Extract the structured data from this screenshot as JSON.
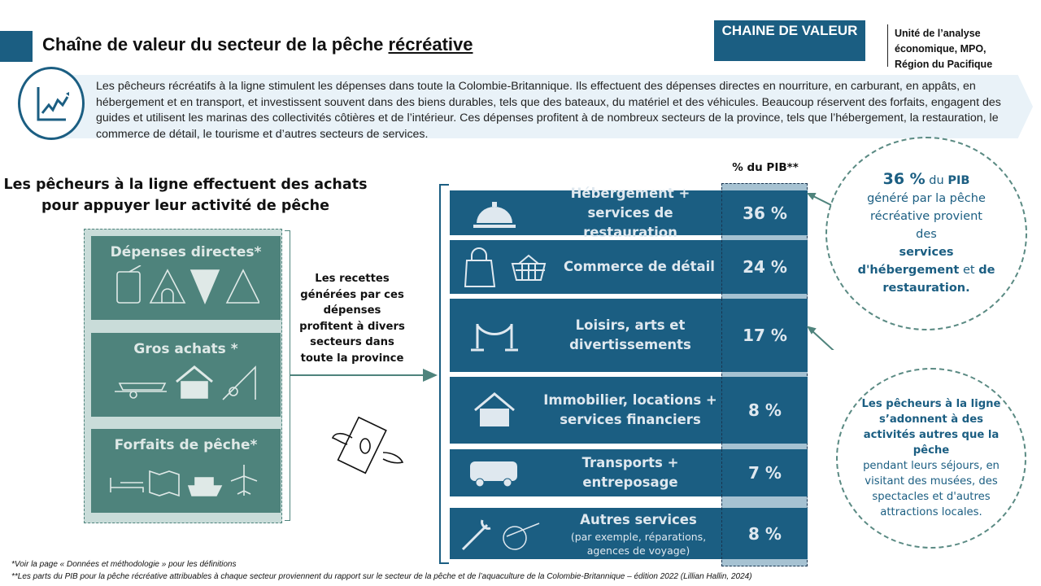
{
  "header": {
    "title_main": "Chaîne de valeur du secteur de la pêche ",
    "title_underlined": "récréative",
    "tag": "CHAINE DE VALEUR",
    "unit_lines": [
      "Unité de l’analyse",
      "économique, MPO,",
      "Région du Pacifique"
    ]
  },
  "intro": {
    "icon": "trend-chart-icon",
    "text": "Les pêcheurs récréatifs à la ligne stimulent les dépenses dans toute la Colombie-Britannique. Ils effectuent des dépenses directes en nourriture, en carburant, en appâts, en hébergement et en transport, et investissent souvent dans des biens durables, tels que des bateaux, du matériel et des véhicules. Beaucoup réservent des forfaits, engagent des guides et utilisent les marinas des collectivités côtières et de l’intérieur. Ces dépenses profitent à de nombreux secteurs de la province, tels que l’hébergement, la restauration, le commerce de détail, le tourisme et d’autres secteurs de services."
  },
  "left": {
    "heading": "Les pêcheurs à la ligne effectuent des achats pour appuyer leur activité de pêche",
    "categories": [
      {
        "label": "Dépenses directes*",
        "icons": [
          "fuel-can-icon",
          "tent-icon",
          "pizza-icon",
          "road-sign-icon"
        ]
      },
      {
        "label": "Gros achats *",
        "icons": [
          "boat-trailer-icon",
          "cabin-icon",
          "fishing-rod-icon"
        ]
      },
      {
        "label": "Forfaits de pêche*",
        "icons": [
          "bed-icon",
          "map-icon",
          "ship-icon",
          "airplane-icon"
        ]
      }
    ]
  },
  "middle": {
    "text": "Les recettes générées par ces dépenses profitent à divers secteurs dans toute la province",
    "icon": "flying-money-icon"
  },
  "sectors": {
    "column_header": "% du PIB**",
    "colors": {
      "row": "#1b5e82",
      "column": "#a6c2d2",
      "categories": "#4e837c"
    },
    "rows": [
      {
        "label": "Hébergement  + services de restauration",
        "pct": "36 %",
        "icon": "service-bell-icon"
      },
      {
        "label": "Commerce de détail",
        "pct": "24 %",
        "icon": "shopping-icon"
      },
      {
        "label": "Loisirs, arts et divertissements",
        "pct": "17 %",
        "icon": "stanchion-icon"
      },
      {
        "label": "Immobilier, locations + services financiers",
        "pct": "8 %",
        "icon": "house-icon"
      },
      {
        "label": "Transports + entreposage",
        "pct": "7 %",
        "icon": "bus-icon"
      },
      {
        "label": "Autres services",
        "sub": "(par exemple, réparations, agences de voyage)",
        "pct": "8 %",
        "icon": "wrench-travel-icon"
      }
    ]
  },
  "callouts": {
    "c1": {
      "a": "36 %",
      "b": " du ",
      "c": "PIB",
      "d": "généré par la pêche récréative provient des",
      "e": "services d'hébergement",
      "f": " et ",
      "g": "de restauration."
    },
    "c2": {
      "bold": "Les pêcheurs à la ligne  s’adonnent à des activités autres que la pêche",
      "rest": "pendant leurs séjours, en visitant des musées, des spectacles et d'autres attractions locales."
    }
  },
  "footnotes": [
    "*Voir la page « Données et méthodologie »  pour les définitions",
    "**Les parts du PIB pour la pêche récréative attribuables à chaque secteur proviennent du rapport sur le secteur de la pêche et de l’aquaculture de la Colombie-Britannique – édition 2022 (Lillian Hallin, 2024)"
  ]
}
